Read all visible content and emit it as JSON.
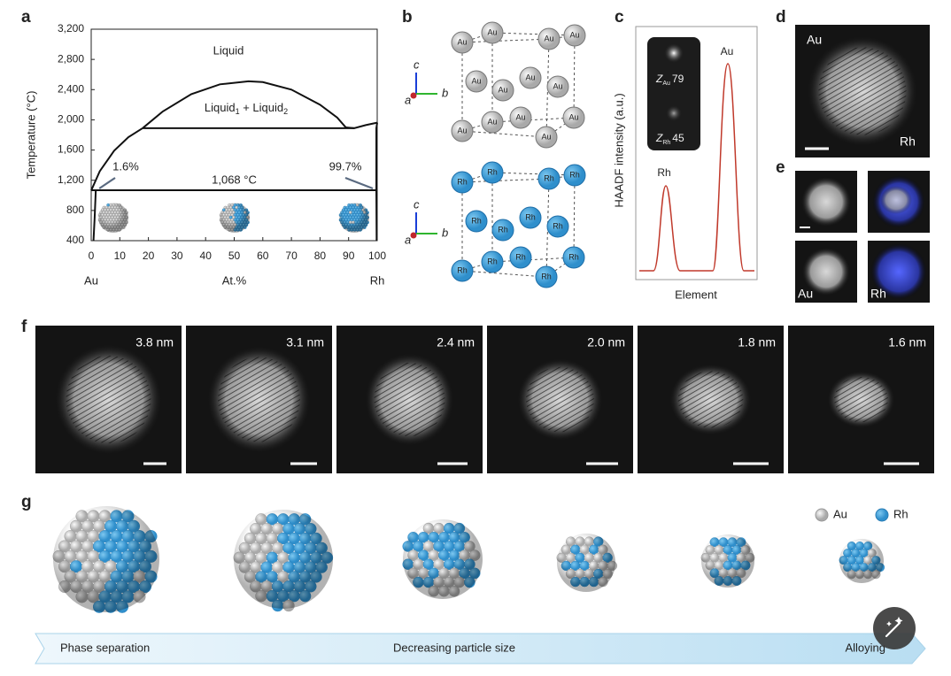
{
  "panel_labels": [
    "a",
    "b",
    "c",
    "d",
    "e",
    "f",
    "g"
  ],
  "panel_a": {
    "ylabel": "Temperature (°C)",
    "xlim": [
      0,
      100
    ],
    "xticks": [
      0,
      10,
      20,
      30,
      40,
      50,
      60,
      70,
      80,
      90,
      100
    ],
    "ylim": [
      400,
      3200
    ],
    "yticks": [
      400,
      800,
      {
        "value": 1200,
        "label": "1,200"
      },
      {
        "value": 1600,
        "label": "1,600"
      },
      {
        "value": 2000,
        "label": "2,000"
      },
      {
        "value": 2400,
        "label": "2,400"
      },
      {
        "value": 2800,
        "label": "2,800"
      },
      {
        "value": 3200,
        "label": "3,200"
      }
    ],
    "x_end_labels": [
      "Au",
      "At.%",
      "Rh"
    ],
    "region_labels": {
      "liquid": "Liquid",
      "two_liquid": [
        "Liquid",
        "1",
        " + Liquid",
        "2"
      ]
    },
    "isotherm": {
      "value": 1068,
      "label": "1,068 °C"
    },
    "solubility_labels": [
      {
        "value": 1.6,
        "label": "1.6%"
      },
      {
        "value": 99.7,
        "label": "99.7%"
      }
    ],
    "curves": [
      {
        "x": [
          18,
          25,
          35,
          45,
          55,
          60,
          70,
          80,
          86,
          89
        ],
        "y": [
          1890,
          2110,
          2340,
          2470,
          2510,
          2500,
          2400,
          2200,
          2030,
          1900
        ]
      },
      {
        "x": [
          0,
          3,
          8,
          13,
          18
        ],
        "y": [
          1064,
          1320,
          1590,
          1770,
          1890
        ]
      },
      {
        "x": [
          18,
          92
        ],
        "y": [
          1890,
          1890
        ]
      },
      {
        "x": [
          89,
          92,
          96,
          100
        ],
        "y": [
          1900,
          1890,
          1930,
          1963
        ]
      },
      {
        "x": [
          1.6,
          1.2,
          0.8
        ],
        "y": [
          1068,
          700,
          400
        ]
      },
      {
        "x": [
          100,
          99.7,
          99.7,
          99.8
        ],
        "y": [
          1963,
          1890,
          1068,
          400
        ]
      }
    ]
  },
  "panel_b": {
    "atom_labels": [
      "Au",
      "Rh"
    ],
    "axis_labels": [
      "a",
      "b",
      "c"
    ]
  },
  "panel_c": {
    "ylabel": "HAADF intensity (a.u.)",
    "xlabel": "Element",
    "peak_labels": [
      "Rh",
      "Au"
    ],
    "inset": [
      {
        "symbol": "Z",
        "sub": "Au",
        "number": 79
      },
      {
        "symbol": "Z",
        "sub": "Rh",
        "number": 45
      }
    ]
  },
  "panel_d": {
    "labels": [
      "Au",
      "Rh"
    ]
  },
  "panel_e": {
    "labels": [
      "Au",
      "Rh"
    ]
  },
  "panel_f": {
    "sizes": [
      "3.8 nm",
      "3.1 nm",
      "2.4 nm",
      "2.0 nm",
      "1.8 nm",
      "1.6 nm"
    ]
  },
  "panel_g": {
    "legend": [
      "Au",
      "Rh"
    ],
    "arrow_labels": [
      "Phase separation",
      "Decreasing particle size",
      "Alloying"
    ]
  }
}
